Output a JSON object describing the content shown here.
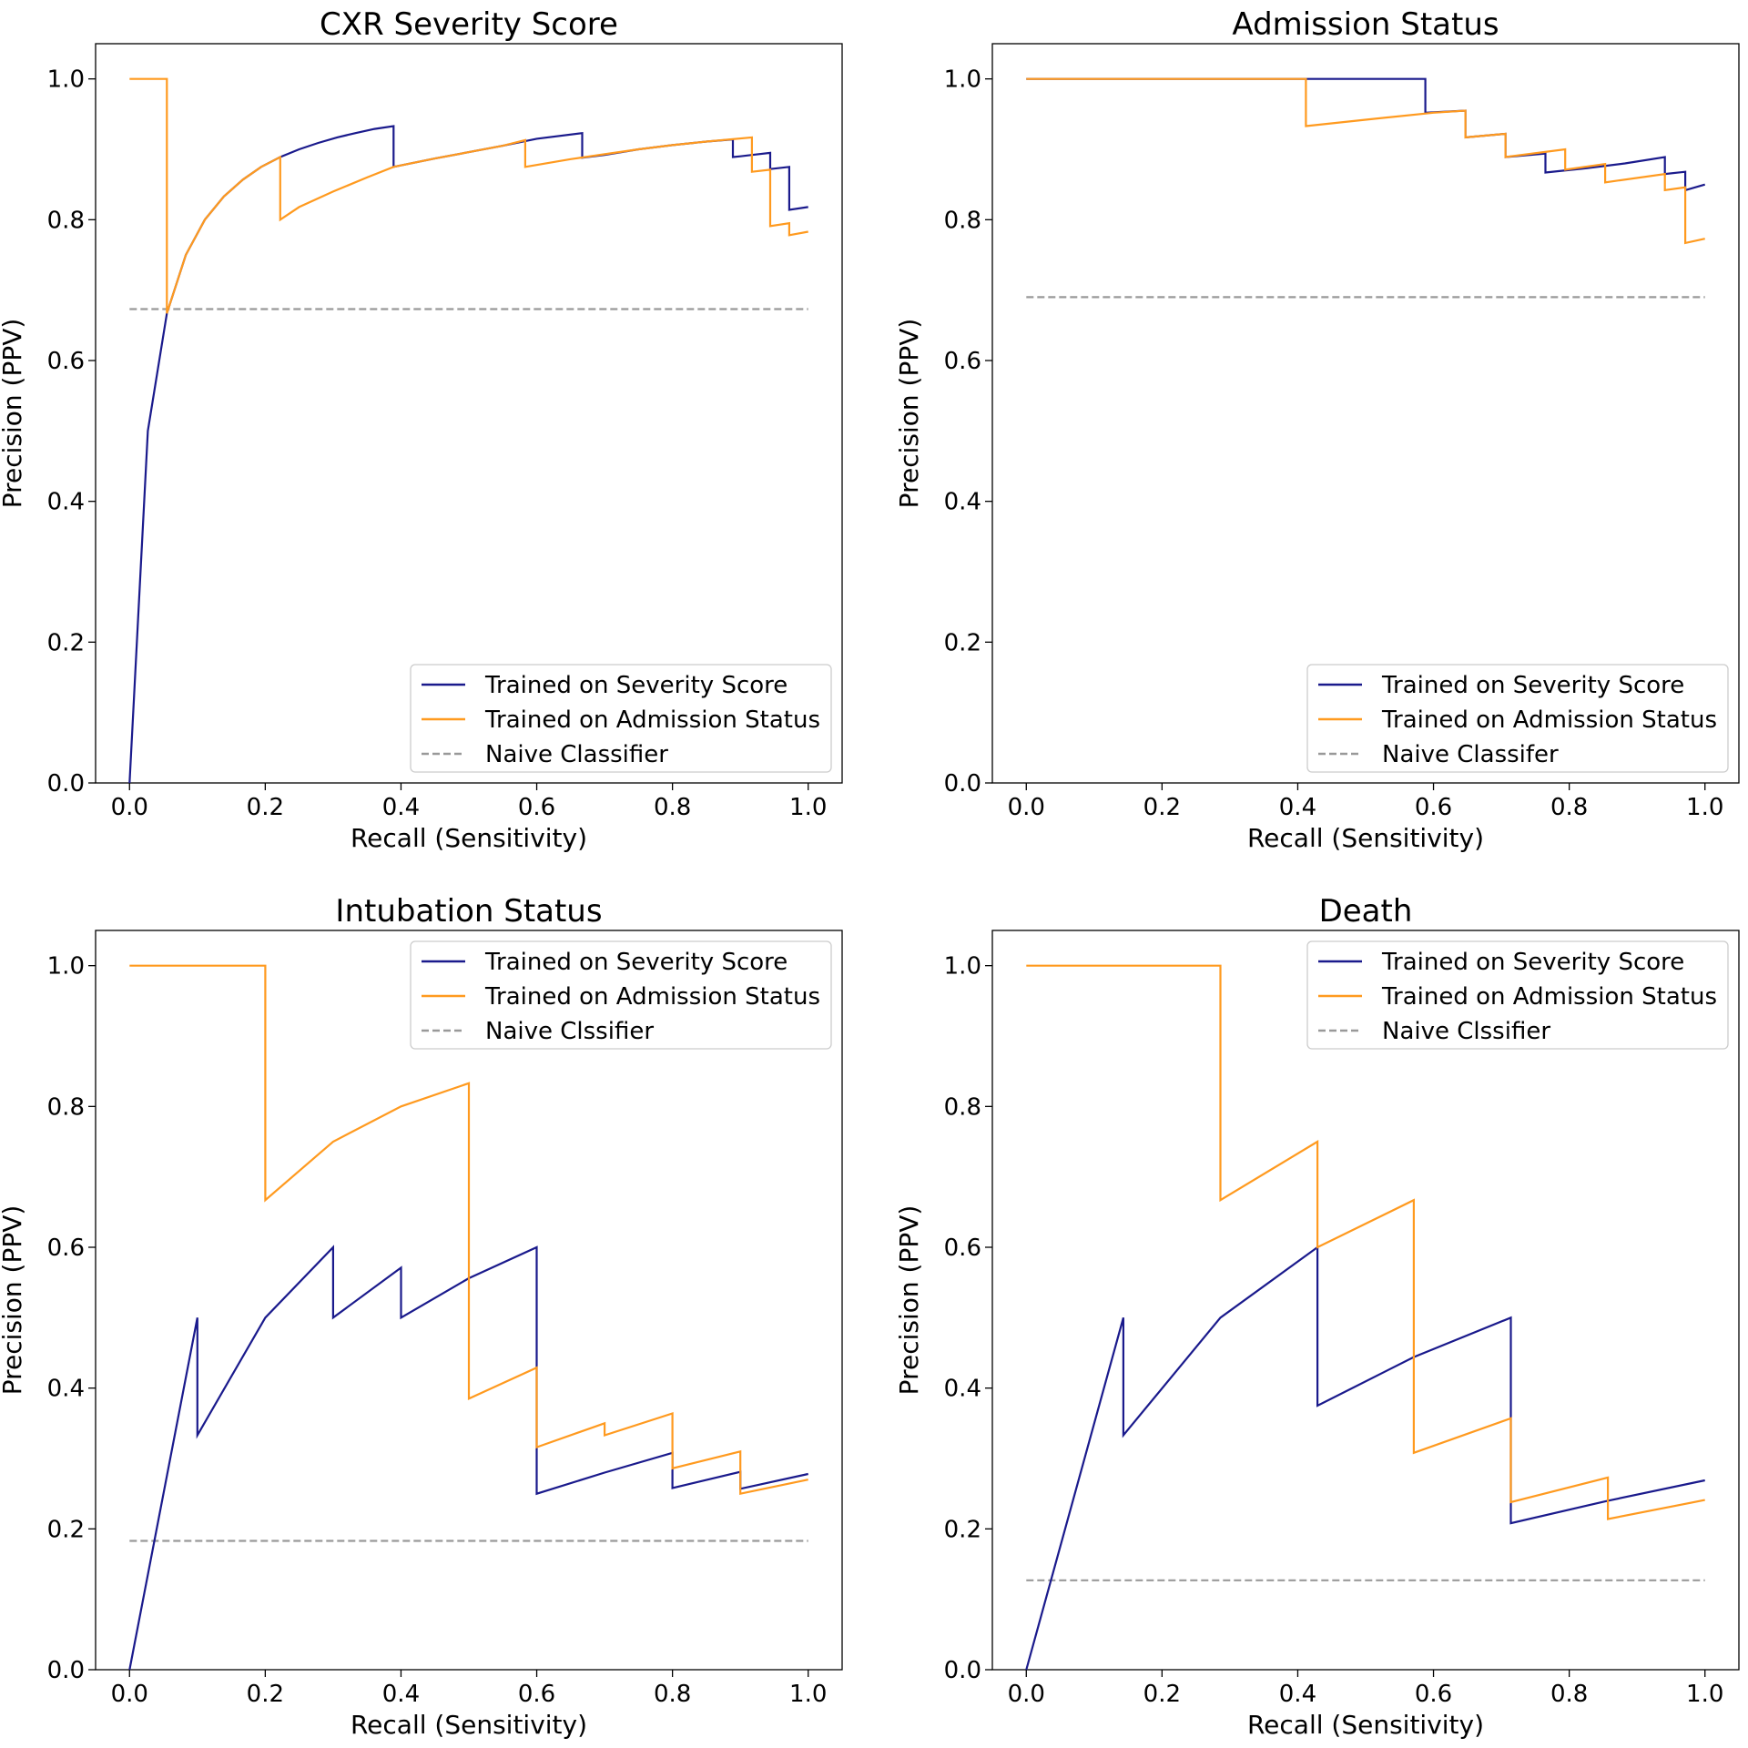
{
  "colors": {
    "severity": "#1a1a8c",
    "admission": "#ff9a1f",
    "naive": "#999999"
  },
  "chart_data": [
    {
      "type": "line",
      "title": "CXR Severity Score",
      "xlabel": "Recall (Sensitivity)",
      "ylabel": "Precision (PPV)",
      "xlim": [
        0,
        1.0
      ],
      "ylim": [
        0,
        1.05
      ],
      "xticks": [
        "0.0",
        "0.2",
        "0.4",
        "0.6",
        "0.8",
        "1.0"
      ],
      "yticks": [
        "0.0",
        "0.2",
        "0.4",
        "0.6",
        "0.8",
        "1.0"
      ],
      "legend_position": "lower right",
      "series": [
        {
          "name": "Trained on Severity Score",
          "color": "#1a1a8c",
          "x": [
            0,
            0.027,
            0.055,
            0.083,
            0.111,
            0.139,
            0.167,
            0.194,
            0.222,
            0.25,
            0.278,
            0.306,
            0.333,
            0.361,
            0.389,
            0.389,
            0.45,
            0.5,
            0.55,
            0.6,
            0.667,
            0.667,
            0.7,
            0.75,
            0.8,
            0.85,
            0.889,
            0.889,
            0.9,
            0.917,
            0.944,
            0.944,
            0.972,
            0.972,
            1.0
          ],
          "y": [
            0,
            0.5,
            0.667,
            0.75,
            0.8,
            0.833,
            0.857,
            0.875,
            0.889,
            0.9,
            0.909,
            0.917,
            0.923,
            0.929,
            0.933,
            0.875,
            0.887,
            0.896,
            0.905,
            0.915,
            0.923,
            0.888,
            0.892,
            0.9,
            0.906,
            0.911,
            0.914,
            0.889,
            0.89,
            0.892,
            0.895,
            0.872,
            0.875,
            0.814,
            0.818
          ]
        },
        {
          "name": "Trained on Admission Status",
          "color": "#ff9a1f",
          "x": [
            0,
            0.055,
            0.055,
            0.083,
            0.111,
            0.139,
            0.167,
            0.194,
            0.222,
            0.222,
            0.25,
            0.3,
            0.35,
            0.389,
            0.45,
            0.5,
            0.55,
            0.583,
            0.583,
            0.65,
            0.7,
            0.75,
            0.8,
            0.85,
            0.917,
            0.917,
            0.944,
            0.944,
            0.972,
            0.972,
            1.0
          ],
          "y": [
            1.0,
            1.0,
            0.667,
            0.75,
            0.8,
            0.833,
            0.857,
            0.875,
            0.889,
            0.8,
            0.818,
            0.84,
            0.86,
            0.875,
            0.887,
            0.896,
            0.905,
            0.913,
            0.875,
            0.886,
            0.893,
            0.9,
            0.906,
            0.911,
            0.917,
            0.868,
            0.871,
            0.791,
            0.795,
            0.778,
            0.783
          ]
        },
        {
          "name": "Naive Classifier",
          "color": "#999999",
          "dashed": true,
          "x": [
            0,
            1.0
          ],
          "y": [
            0.673,
            0.673
          ]
        }
      ]
    },
    {
      "type": "line",
      "title": "Admission Status",
      "xlabel": "Recall (Sensitivity)",
      "ylabel": "Precision (PPV)",
      "xlim": [
        0,
        1.0
      ],
      "ylim": [
        0,
        1.05
      ],
      "xticks": [
        "0.0",
        "0.2",
        "0.4",
        "0.6",
        "0.8",
        "1.0"
      ],
      "yticks": [
        "0.0",
        "0.2",
        "0.4",
        "0.6",
        "0.8",
        "1.0"
      ],
      "legend_position": "lower right",
      "series": [
        {
          "name": "Trained on Severity Score",
          "color": "#1a1a8c",
          "x": [
            0,
            0.588,
            0.588,
            0.647,
            0.647,
            0.706,
            0.706,
            0.765,
            0.765,
            0.824,
            0.882,
            0.941,
            0.941,
            0.971,
            0.971,
            1.0
          ],
          "y": [
            1.0,
            1.0,
            0.952,
            0.955,
            0.917,
            0.922,
            0.889,
            0.894,
            0.867,
            0.873,
            0.88,
            0.889,
            0.865,
            0.868,
            0.842,
            0.85
          ]
        },
        {
          "name": "Trained on Admission Status",
          "color": "#ff9a1f",
          "x": [
            0,
            0.412,
            0.412,
            0.5,
            0.6,
            0.647,
            0.647,
            0.706,
            0.706,
            0.794,
            0.794,
            0.853,
            0.853,
            0.941,
            0.941,
            0.971,
            0.971,
            1.0
          ],
          "y": [
            1.0,
            1.0,
            0.933,
            0.942,
            0.952,
            0.955,
            0.917,
            0.922,
            0.889,
            0.9,
            0.871,
            0.879,
            0.853,
            0.865,
            0.842,
            0.846,
            0.767,
            0.773
          ]
        },
        {
          "name": "Naive Classifer",
          "color": "#999999",
          "dashed": true,
          "x": [
            0,
            1.0
          ],
          "y": [
            0.69,
            0.69
          ]
        }
      ]
    },
    {
      "type": "line",
      "title": "Intubation Status",
      "xlabel": "Recall (Sensitivity)",
      "ylabel": "Precision (PPV)",
      "xlim": [
        0,
        1.0
      ],
      "ylim": [
        0,
        1.05
      ],
      "xticks": [
        "0.0",
        "0.2",
        "0.4",
        "0.6",
        "0.8",
        "1.0"
      ],
      "yticks": [
        "0.0",
        "0.2",
        "0.4",
        "0.6",
        "0.8",
        "1.0"
      ],
      "legend_position": "upper right",
      "series": [
        {
          "name": "Trained on Severity Score",
          "color": "#1a1a8c",
          "x": [
            0,
            0.1,
            0.1,
            0.2,
            0.3,
            0.3,
            0.4,
            0.4,
            0.5,
            0.6,
            0.6,
            0.7,
            0.8,
            0.8,
            0.9,
            0.9,
            1.0
          ],
          "y": [
            0,
            0.5,
            0.333,
            0.5,
            0.6,
            0.5,
            0.571,
            0.5,
            0.556,
            0.6,
            0.25,
            0.28,
            0.308,
            0.258,
            0.281,
            0.257,
            0.278
          ]
        },
        {
          "name": "Trained on Admission Status",
          "color": "#ff9a1f",
          "x": [
            0,
            0.2,
            0.2,
            0.3,
            0.4,
            0.5,
            0.5,
            0.6,
            0.6,
            0.7,
            0.7,
            0.8,
            0.8,
            0.9,
            0.9,
            1.0
          ],
          "y": [
            1.0,
            1.0,
            0.667,
            0.75,
            0.8,
            0.833,
            0.385,
            0.429,
            0.316,
            0.35,
            0.333,
            0.364,
            0.286,
            0.31,
            0.25,
            0.27
          ]
        },
        {
          "name": "Naive Clssifier",
          "color": "#999999",
          "dashed": true,
          "x": [
            0,
            1.0
          ],
          "y": [
            0.183,
            0.183
          ]
        }
      ]
    },
    {
      "type": "line",
      "title": "Death",
      "xlabel": "Recall (Sensitivity)",
      "ylabel": "Precision (PPV)",
      "xlim": [
        0,
        1.0
      ],
      "ylim": [
        0,
        1.05
      ],
      "xticks": [
        "0.0",
        "0.2",
        "0.4",
        "0.6",
        "0.8",
        "1.0"
      ],
      "yticks": [
        "0.0",
        "0.2",
        "0.4",
        "0.6",
        "0.8",
        "1.0"
      ],
      "legend_position": "upper right",
      "series": [
        {
          "name": "Trained on Severity Score",
          "color": "#1a1a8c",
          "x": [
            0,
            0.143,
            0.143,
            0.286,
            0.429,
            0.429,
            0.571,
            0.714,
            0.714,
            0.857,
            1.0
          ],
          "y": [
            0,
            0.5,
            0.333,
            0.5,
            0.6,
            0.375,
            0.444,
            0.5,
            0.208,
            0.24,
            0.269
          ]
        },
        {
          "name": "Trained on Admission Status",
          "color": "#ff9a1f",
          "x": [
            0,
            0.286,
            0.286,
            0.429,
            0.429,
            0.571,
            0.571,
            0.714,
            0.714,
            0.857,
            0.857,
            1.0
          ],
          "y": [
            1.0,
            1.0,
            0.667,
            0.75,
            0.6,
            0.667,
            0.308,
            0.357,
            0.238,
            0.273,
            0.214,
            0.241
          ]
        },
        {
          "name": "Naive Clssifier",
          "color": "#999999",
          "dashed": true,
          "x": [
            0,
            1.0
          ],
          "y": [
            0.127,
            0.127
          ]
        }
      ]
    }
  ]
}
